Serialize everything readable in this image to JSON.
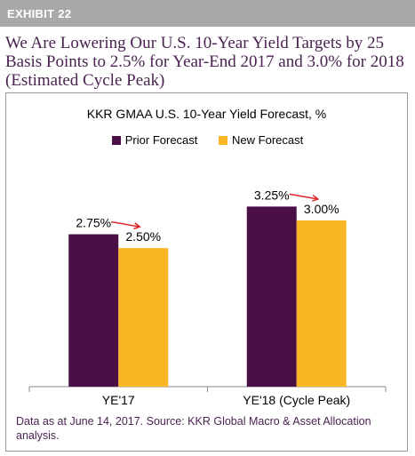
{
  "exhibit": {
    "label": "EXHIBIT 22"
  },
  "headline": "We Are Lowering Our U.S. 10-Year Yield Targets by 25 Basis Points to 2.5% for Year-End 2017 and 3.0% for 2018 (Estimated Cycle Peak)",
  "footnote": "Data as at June 14, 2017. Source: KKR Global Macro & Asset Allocation analysis.",
  "colors": {
    "prior": "#4a0f45",
    "new": "#fbb626",
    "arrow": "#e0262b",
    "headline": "#4a2350"
  },
  "chart_data": {
    "type": "bar",
    "title": "KKR GMAA U.S. 10-Year Yield Forecast, %",
    "categories": [
      "YE'17",
      "YE'18 (Cycle Peak)"
    ],
    "series": [
      {
        "name": "Prior Forecast",
        "values": [
          2.75,
          3.25
        ],
        "labels": [
          "2.75%",
          "3.25%"
        ]
      },
      {
        "name": "New Forecast",
        "values": [
          2.5,
          3.0
        ],
        "labels": [
          "2.50%",
          "3.00%"
        ]
      }
    ],
    "ylim": [
      0,
      4.09
    ],
    "legend": "top-center",
    "grid": false,
    "annotations": [
      "red arrows from prior to new forecast"
    ]
  }
}
